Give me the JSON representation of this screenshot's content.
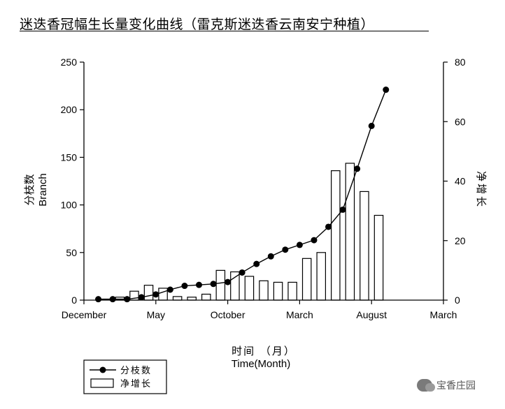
{
  "title": "迷迭香冠幅生长量变化曲线（雷克斯迷迭香云南安宁种植）",
  "watermark": "宝香庄园",
  "chart_data": {
    "type": "bar+line",
    "title": "迷迭香冠幅生长量变化曲线（雷克斯迷迭香云南安宁种植）",
    "xlabel_cn": "时间 （月）",
    "xlabel": "Time(Month)",
    "ylabel_cn": "分枝数",
    "ylabel": "Branch",
    "y2label": "净增长",
    "x_ticks": [
      "December",
      "May",
      "October",
      "March",
      "August",
      "March"
    ],
    "x_range": [
      0,
      25
    ],
    "ylim": [
      0,
      250
    ],
    "y_ticks": [
      0,
      50,
      100,
      150,
      200,
      250
    ],
    "y2lim": [
      0,
      80
    ],
    "y2_ticks": [
      0,
      20,
      40,
      60,
      80
    ],
    "legend": [
      "分枝数",
      "净增长"
    ],
    "legend_placement": "bottom-left, below chart",
    "grid": false,
    "series": [
      {
        "name": "分枝数",
        "type": "line",
        "axis": "left",
        "x": [
          1,
          2,
          3,
          4,
          5,
          6,
          7,
          8,
          9,
          10,
          11,
          12,
          13,
          14,
          15,
          16,
          17,
          18,
          19,
          20,
          21
        ],
        "values": [
          1,
          1,
          1,
          3,
          6,
          11,
          15,
          16,
          17,
          19,
          29,
          38,
          46,
          53,
          58,
          63,
          77,
          95,
          138,
          183,
          221
        ]
      },
      {
        "name": "净增长",
        "type": "bar",
        "axis": "right",
        "x": [
          2.5,
          3.5,
          4.5,
          5.5,
          6.5,
          7.5,
          8.5,
          9.5,
          10.5,
          11.5,
          12.5,
          13.5,
          14.5,
          15.5,
          16.5,
          17.5,
          18.5,
          19.5,
          20.5
        ],
        "values": [
          1,
          3,
          5,
          4,
          1.2,
          1,
          2,
          10,
          9.5,
          8,
          6.5,
          6,
          6,
          14,
          16,
          43.5,
          46,
          36.5,
          28.5
        ]
      }
    ]
  }
}
